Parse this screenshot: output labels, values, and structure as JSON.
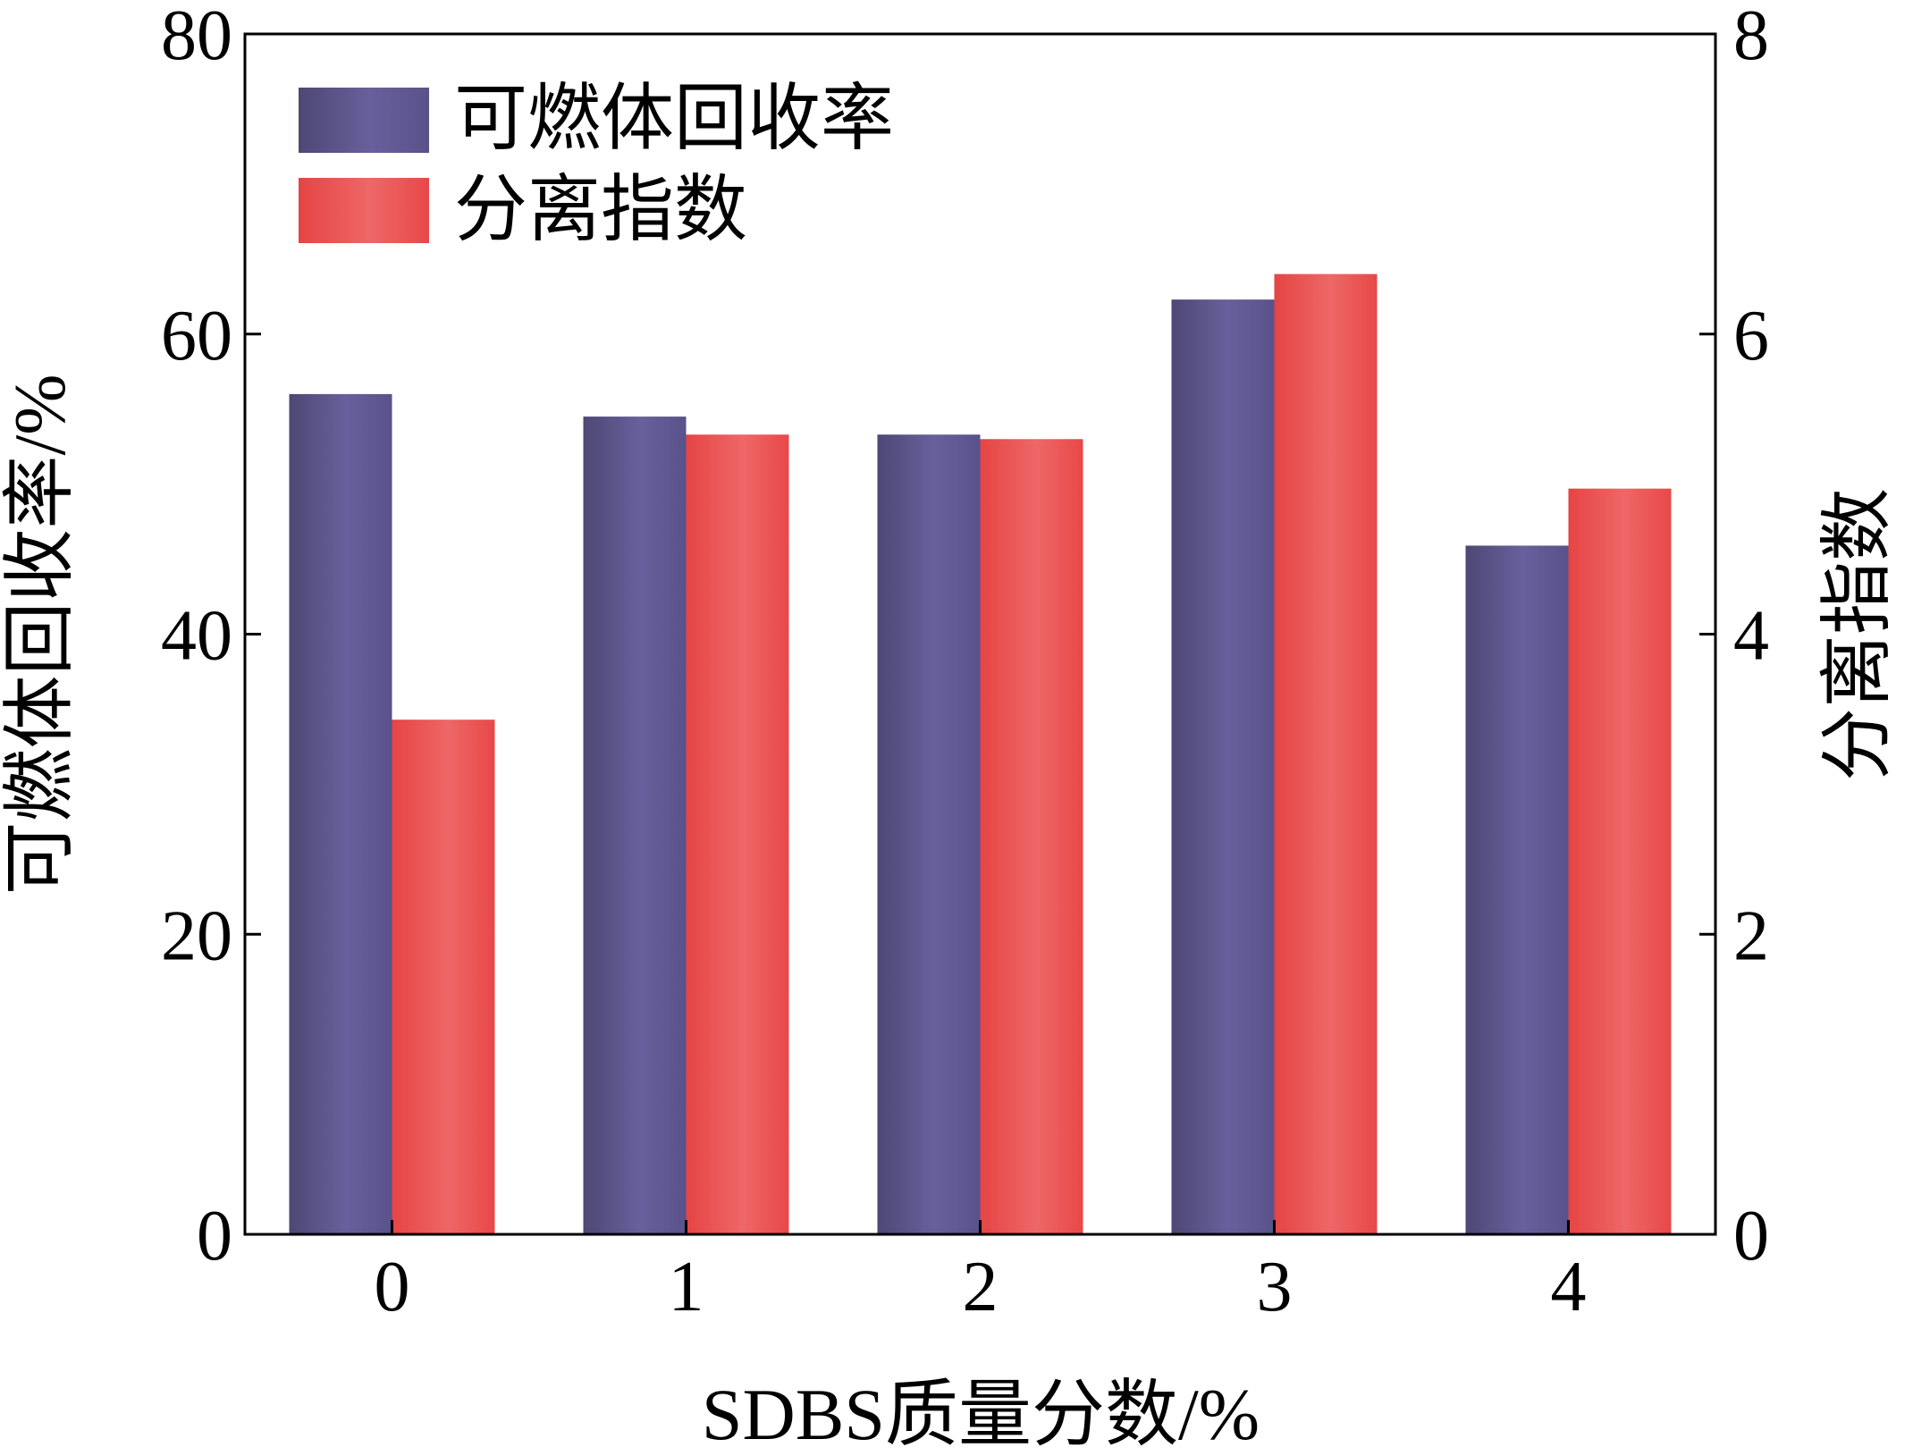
{
  "chart_data": {
    "type": "bar",
    "title": "",
    "xlabel": "SDBS质量分数/%",
    "ylabel": "可燃体回收率/%",
    "y2label": "分离指数",
    "categories": [
      "0",
      "1",
      "2",
      "3",
      "4"
    ],
    "ylim": [
      0,
      80
    ],
    "y2lim": [
      0,
      8
    ],
    "yticks": [
      "0",
      "20",
      "40",
      "60",
      "80"
    ],
    "y2ticks": [
      "0",
      "2",
      "4",
      "6",
      "8"
    ],
    "legend_position": "top-left",
    "grid": false,
    "series": [
      {
        "name": "可燃体回收率",
        "axis": "left",
        "color": "#5d5690",
        "values": [
          56.0,
          54.5,
          53.3,
          62.3,
          45.9
        ]
      },
      {
        "name": "分离指数",
        "axis": "right",
        "color": "#e9504f",
        "values": [
          3.43,
          5.33,
          5.3,
          6.4,
          4.97
        ]
      }
    ]
  }
}
